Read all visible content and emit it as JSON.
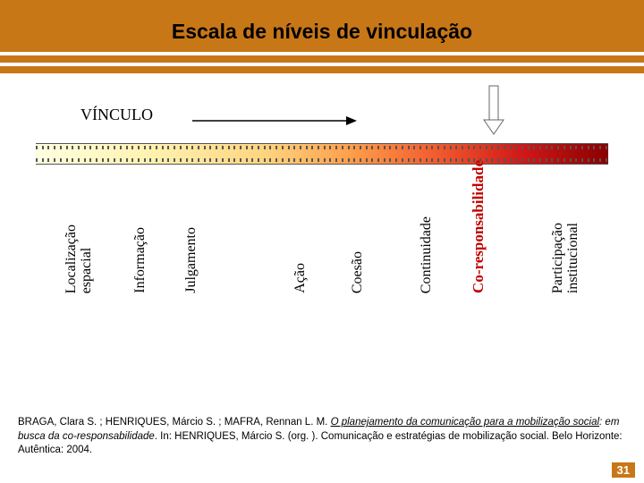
{
  "header": {
    "band_color": "#c87717",
    "stripe_gap_color": "#ffffff",
    "top_band_h": 14,
    "title_band_h": 44,
    "thin_band_h": 8,
    "gap_h": 4,
    "title": "Escala de níveis de vinculação"
  },
  "diagram": {
    "vinculo_label": "VÍNCULO",
    "arrow_h": {
      "length": 175,
      "stroke": "#000000",
      "stroke_width": 1.5
    },
    "arrow_down": {
      "height": 54,
      "width": 22,
      "stroke": "#555555",
      "fill": "#ffffff"
    },
    "gradient_stops": [
      {
        "pct": 0,
        "color": "#ffffe0"
      },
      {
        "pct": 20,
        "color": "#fff2b0"
      },
      {
        "pct": 40,
        "color": "#ffd480"
      },
      {
        "pct": 55,
        "color": "#ff9e4a"
      },
      {
        "pct": 70,
        "color": "#f25b2e"
      },
      {
        "pct": 85,
        "color": "#d01818"
      },
      {
        "pct": 100,
        "color": "#8a0000"
      }
    ],
    "dash_count": 96,
    "labels": [
      {
        "text": "Localização espacial",
        "left_pct": 5,
        "fontsize": 16,
        "color": "#000000",
        "weight": "normal",
        "two_line": true,
        "second": "espacial"
      },
      {
        "text": "Informação",
        "left_pct": 17,
        "fontsize": 16,
        "color": "#000000",
        "weight": "normal"
      },
      {
        "text": "Julgamento",
        "left_pct": 26,
        "fontsize": 16,
        "color": "#000000",
        "weight": "normal"
      },
      {
        "text": "Ação",
        "left_pct": 45,
        "fontsize": 16,
        "color": "#000000",
        "weight": "normal"
      },
      {
        "text": "Coesão",
        "left_pct": 55,
        "fontsize": 16,
        "color": "#000000",
        "weight": "normal"
      },
      {
        "text": "Continuidade",
        "left_pct": 67,
        "fontsize": 16,
        "color": "#000000",
        "weight": "normal"
      },
      {
        "text": "Co-responsabilidade",
        "left_pct": 76,
        "fontsize": 17,
        "color": "#c00000",
        "weight": "bold"
      },
      {
        "text": "Participação institucional",
        "left_pct": 90,
        "fontsize": 16,
        "color": "#000000",
        "weight": "normal",
        "two_line": true,
        "second": "institucional"
      }
    ]
  },
  "citation": {
    "authors": "BRAGA, Clara S. ; HENRIQUES, Márcio S. ; MAFRA, Rennan L. M. ",
    "title_ital_under": "O planejamento da comunicação para a mobilização social",
    "subtitle_ital": ": em busca da co-responsabilidade",
    "rest": ". In: HENRIQUES, Márcio S. (org. ). Comunicação e estratégias de mobilização social. Belo Horizonte: Autêntica: 2004."
  },
  "page_number": "31",
  "page_number_bg": "#c87717"
}
